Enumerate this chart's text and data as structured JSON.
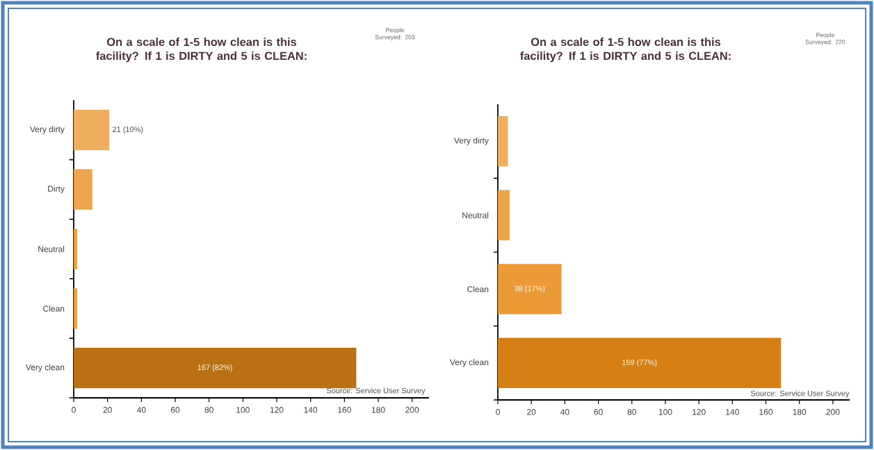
{
  "chart_data": [
    {
      "type": "bar",
      "orientation": "horizontal",
      "title": "On a scale of 1-5 how clean is this facility? If 1 is DIRTY and 5 is CLEAN:",
      "categories": [
        "Very dirty",
        "Dirty",
        "Neutral",
        "Clean",
        "Very clean"
      ],
      "values": [
        21,
        11,
        2,
        2,
        167
      ],
      "colors": [
        "#f0ae5f",
        "#eea54f",
        "#ee9c3b",
        "#ee9c3b",
        "#bb7014"
      ],
      "value_labels": [
        "21 (10%)",
        null,
        null,
        null,
        "167 (82%)"
      ],
      "xlim": [
        0,
        210
      ],
      "xticks": [
        0,
        20,
        40,
        60,
        80,
        100,
        120,
        140,
        160,
        180,
        200
      ],
      "annotations": [
        "People Surveyed: 203",
        "Source: Service User Survey"
      ]
    },
    {
      "type": "bar",
      "orientation": "horizontal",
      "title": "On a scale of 1-5 how clean is this facility? If 1 is DIRTY and 5 is CLEAN:",
      "categories": [
        "Very dirty",
        "Neutral",
        "Clean",
        "Very clean"
      ],
      "values": [
        6,
        7,
        38,
        169
      ],
      "colors": [
        "#f0ae5f",
        "#eca448",
        "#ec9a35",
        "#d67f15"
      ],
      "value_labels": [
        null,
        null,
        "38 (17%)",
        "169 (77%)"
      ],
      "xlim": [
        0,
        210
      ],
      "xticks": [
        0,
        20,
        40,
        60,
        80,
        100,
        120,
        140,
        160,
        180,
        200
      ],
      "annotations": [
        "People Surveyed: 220",
        "Source: Service User Survey"
      ]
    }
  ]
}
